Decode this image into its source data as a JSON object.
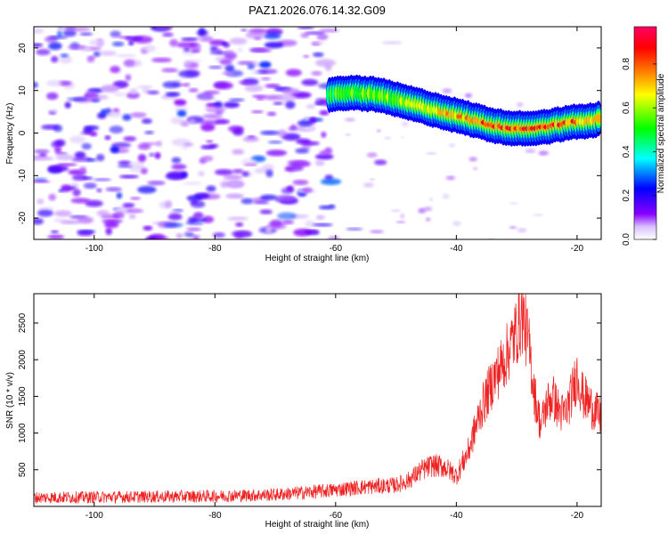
{
  "title": "PAZ1.2026.076.14.32.G09",
  "chart_data": [
    {
      "type": "heatmap",
      "title": "PAZ1.2026.076.14.32.G09",
      "xlabel": "Height of straight line (km)",
      "ylabel": "Frequency (Hz)",
      "xlim": [
        -110,
        -16
      ],
      "ylim": [
        -25,
        25
      ],
      "x_ticks": [
        -100,
        -80,
        -60,
        -40,
        -20
      ],
      "y_ticks": [
        -20,
        -10,
        0,
        10,
        20
      ],
      "x_tick_labels": [
        "-100",
        "-80",
        "-60",
        "-40",
        "-20"
      ],
      "y_tick_labels": [
        "-20",
        "-10",
        "0",
        "10",
        "20"
      ],
      "colorbar": {
        "label": "Normalized spectral amplitude",
        "range": [
          0,
          0.97
        ],
        "ticks": [
          0.0,
          0.2,
          0.4,
          0.6,
          0.8
        ],
        "tick_labels": [
          "0.0",
          "0.2",
          "0.4",
          "0.6",
          "0.8"
        ],
        "colors": [
          "#ffffff",
          "#c8a8ff",
          "#8800ff",
          "#0000ff",
          "#00ffff",
          "#00ff00",
          "#ffff00",
          "#ff8800",
          "#ff0000",
          "#ff0066"
        ]
      },
      "signal_trace": {
        "description_x_km": [
          -61,
          -57,
          -53,
          -49,
          -45,
          -41,
          -37,
          -33,
          -29,
          -25,
          -21,
          -17,
          -16
        ],
        "frequency_hz": [
          9,
          9.5,
          9,
          7.5,
          6,
          4.5,
          3,
          1.5,
          1,
          1.5,
          2.5,
          3,
          3.5
        ],
        "peak_amplitude": [
          0.5,
          0.55,
          0.6,
          0.6,
          0.65,
          0.7,
          0.75,
          0.85,
          0.9,
          0.85,
          0.8,
          0.75,
          0.7
        ]
      },
      "noise_region_x_km": [
        -110,
        -60
      ],
      "noise_amplitude_range": [
        0.05,
        0.25
      ]
    },
    {
      "type": "line",
      "xlabel": "Height of straight line (km)",
      "ylabel": "SNR (10 * v/v)",
      "xlim": [
        -110,
        -16
      ],
      "ylim": [
        0,
        2900
      ],
      "x_ticks": [
        -100,
        -80,
        -60,
        -40,
        -20
      ],
      "y_ticks": [
        500,
        1000,
        1500,
        2000,
        2500
      ],
      "x_tick_labels": [
        "-100",
        "-80",
        "-60",
        "-40",
        "-20"
      ],
      "y_tick_labels": [
        "500",
        "1000",
        "1500",
        "2000",
        "2500"
      ],
      "color": "#ee2222",
      "envelope": {
        "x": [
          -110,
          -95,
          -80,
          -70,
          -62,
          -56,
          -50,
          -48,
          -46,
          -44,
          -42,
          -40,
          -38,
          -36,
          -34,
          -32,
          -30,
          -29,
          -28,
          -27,
          -26,
          -25,
          -24,
          -23,
          -22,
          -21,
          -20,
          -19,
          -18,
          -17,
          -16
        ],
        "y": [
          120,
          130,
          140,
          160,
          210,
          260,
          290,
          350,
          480,
          560,
          540,
          420,
          750,
          1300,
          1700,
          2000,
          2400,
          2600,
          2200,
          1500,
          1100,
          1400,
          1500,
          1300,
          1250,
          1500,
          1800,
          1500,
          1400,
          1300,
          1200
        ]
      },
      "noise_amplitude": 60
    }
  ]
}
